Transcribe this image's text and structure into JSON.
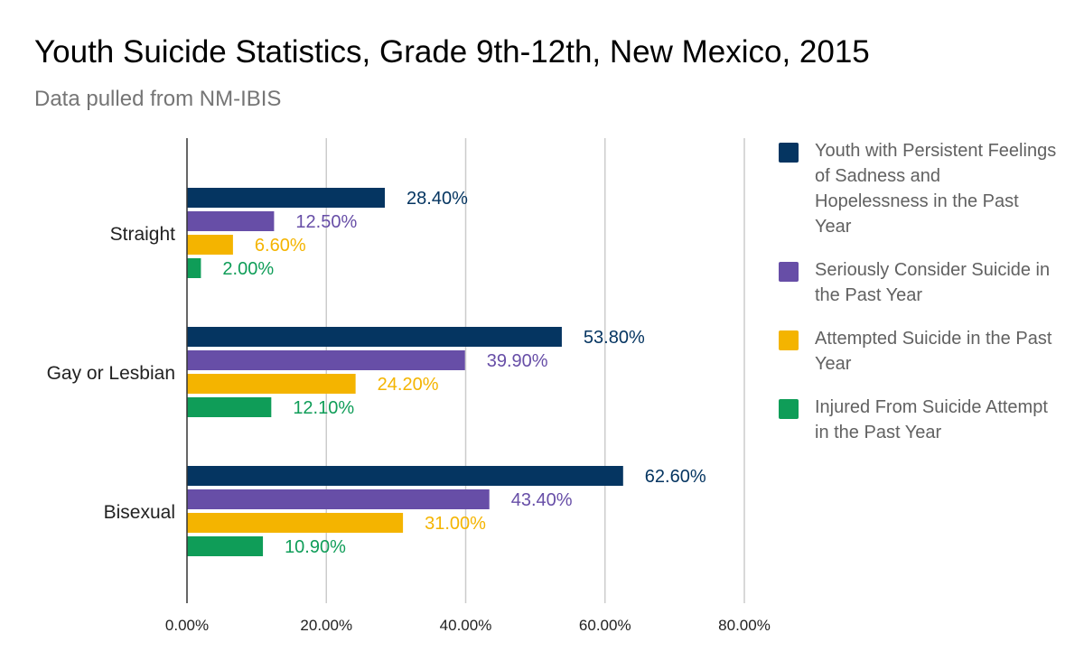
{
  "chart_data": {
    "type": "bar",
    "orientation": "horizontal",
    "title": "Youth Suicide Statistics, Grade 9th-12th, New Mexico, 2015",
    "subtitle": "Data pulled from NM-IBIS",
    "categories": [
      "Straight",
      "Gay or Lesbian",
      "Bisexual"
    ],
    "series": [
      {
        "name": "Youth with Persistent Feelings of Sadness and Hopelessness in the Past Year",
        "color": "#053561",
        "values": [
          28.4,
          53.8,
          62.6
        ],
        "labels": [
          "28.40%",
          "53.80%",
          "62.60%"
        ]
      },
      {
        "name": "Seriously Consider Suicide in the Past Year",
        "color": "#674ea7",
        "values": [
          12.5,
          39.9,
          43.4
        ],
        "labels": [
          "12.50%",
          "39.90%",
          "43.40%"
        ]
      },
      {
        "name": "Attempted Suicide in the Past Year",
        "color": "#f4b400",
        "values": [
          6.6,
          24.2,
          31.0
        ],
        "labels": [
          "6.60%",
          "24.20%",
          "31.00%"
        ]
      },
      {
        "name": "Injured From Suicide Attempt in the Past Year",
        "color": "#0f9d58",
        "values": [
          2.0,
          12.1,
          10.9
        ],
        "labels": [
          "2.00%",
          "12.10%",
          "10.90%"
        ]
      }
    ],
    "xlim": [
      0,
      80
    ],
    "xticks": [
      0,
      20,
      40,
      60,
      80
    ],
    "xtick_labels": [
      "0.00%",
      "20.00%",
      "40.00%",
      "60.00%",
      "80.00%"
    ],
    "grid": true,
    "legend_position": "right"
  }
}
